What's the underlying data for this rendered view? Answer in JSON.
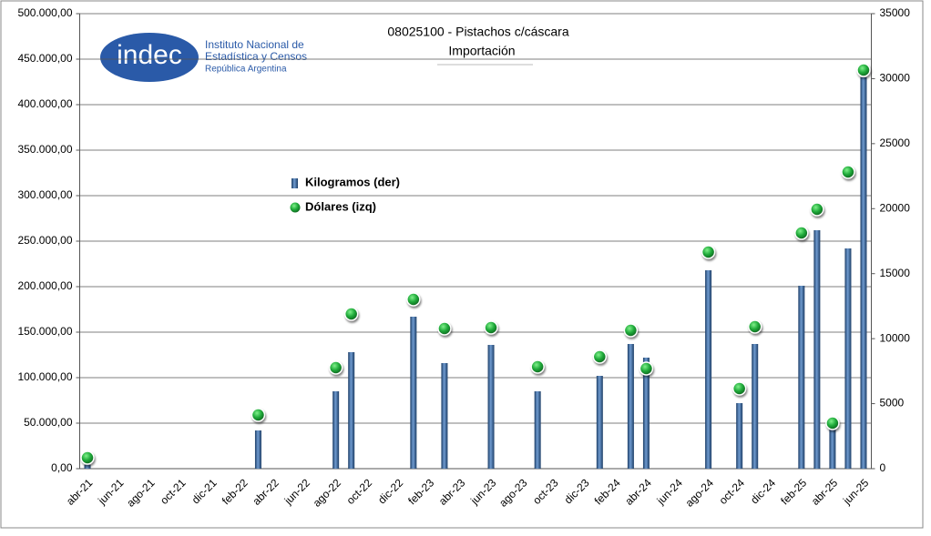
{
  "logo": {
    "mark": "indec",
    "lines": [
      "Instituto Nacional de",
      "Estadística y Censos",
      "República Argentina"
    ]
  },
  "chart_data": {
    "type": "bar-dot",
    "title": "08025100 - Pistachos c/cáscara",
    "subtitle": "Importación",
    "categories": [
      "abr-21",
      null,
      "jun-21",
      null,
      "ago-21",
      null,
      "oct-21",
      null,
      "dic-21",
      null,
      "feb-22",
      null,
      "abr-22",
      null,
      "jun-22",
      null,
      "ago-22",
      null,
      "oct-22",
      null,
      "dic-22",
      null,
      "feb-23",
      null,
      "abr-23",
      null,
      "jun-23",
      null,
      "ago-23",
      null,
      "oct-23",
      null,
      "dic-23",
      null,
      "feb-24",
      null,
      "abr-24",
      null,
      "jun-24",
      null,
      "ago-24",
      null,
      "oct-24",
      null,
      "dic-24",
      null,
      "feb-25",
      null,
      "abr-25",
      null,
      "jun-25"
    ],
    "series": [
      {
        "name": "Kilogramos (der)",
        "color": "#2e5b8f",
        "axis": "y2",
        "values": [
          300,
          null,
          null,
          null,
          null,
          null,
          null,
          null,
          null,
          null,
          null,
          2940,
          null,
          null,
          null,
          null,
          5950,
          8960,
          null,
          null,
          null,
          11690,
          null,
          8120,
          null,
          null,
          9520,
          null,
          null,
          5950,
          null,
          null,
          null,
          7140,
          null,
          9590,
          8540,
          null,
          null,
          null,
          15260,
          null,
          5040,
          9590,
          null,
          null,
          14070,
          18340,
          3150,
          16940,
          30100
        ]
      },
      {
        "name": "Dólares (izq)",
        "color": "#1faa3a",
        "values": [
          12000,
          null,
          null,
          null,
          null,
          null,
          null,
          null,
          null,
          null,
          null,
          59000,
          null,
          null,
          null,
          null,
          111000,
          170000,
          null,
          null,
          null,
          186000,
          null,
          154000,
          null,
          null,
          155000,
          null,
          null,
          112000,
          null,
          null,
          null,
          123000,
          null,
          152000,
          110000,
          null,
          null,
          null,
          238000,
          null,
          88000,
          156000,
          null,
          null,
          259000,
          285000,
          50000,
          326000,
          438000
        ]
      }
    ],
    "ylim": [
      0,
      500000
    ],
    "yticks": [
      {
        "value": 0,
        "label": "0,00"
      },
      {
        "value": 50000,
        "label": "50.000,00"
      },
      {
        "value": 100000,
        "label": "100.000,00"
      },
      {
        "value": 150000,
        "label": "150.000,00"
      },
      {
        "value": 200000,
        "label": "200.000,00"
      },
      {
        "value": 250000,
        "label": "250.000,00"
      },
      {
        "value": 300000,
        "label": "300.000,00"
      },
      {
        "value": 350000,
        "label": "350.000,00"
      },
      {
        "value": 400000,
        "label": "400.000,00"
      },
      {
        "value": 450000,
        "label": "450.000,00"
      },
      {
        "value": 500000,
        "label": "500.000,00"
      }
    ],
    "y2lim": [
      0,
      35000
    ],
    "y2ticks": [
      0,
      5000,
      10000,
      15000,
      20000,
      25000,
      30000,
      35000
    ],
    "grid": true
  }
}
